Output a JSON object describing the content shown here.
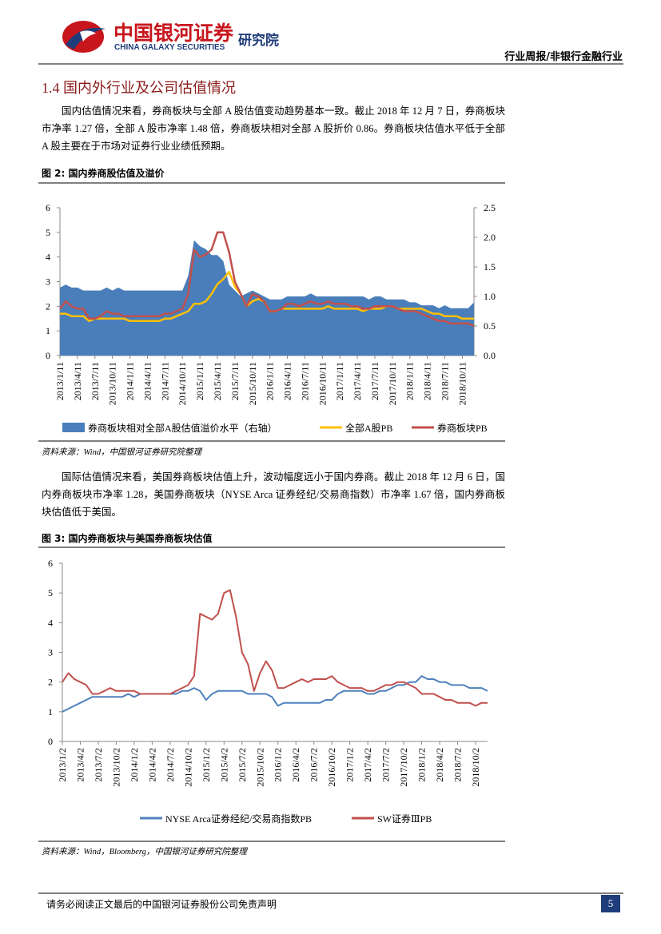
{
  "header": {
    "company_cn": "中国银河证券",
    "company_en": "CHINA GALAXY SECURITIES",
    "institute": "研究院",
    "report_type": "行业周报/非银行金融行业"
  },
  "section": {
    "heading": "1.4 国内外行业及公司估值情况",
    "paragraph_1": "国内估值情况来看，券商板块与全部 A 股估值变动趋势基本一致。截止 2018 年 12 月 7 日，券商板块市净率 1.27 倍，全部 A 股市净率 1.48 倍，券商板块相对全部 A 股折价 0.86。券商板块估值水平低于全部 A 股主要在于市场对证券行业业绩低预期。",
    "paragraph_2": "国际估值情况来看，美国券商板块估值上升，波动幅度远小于国内券商。截止 2018 年 12 月 6 日，国内券商板块市净率 1.28，美国券商板块（NYSE Arca 证券经纪/交易商指数）市净率 1.67 倍，国内券商板块估值低于美国。"
  },
  "chart_data": [
    {
      "type": "line",
      "title": "图 2: 国内券商股估值及溢价",
      "source": "资料来源：Wind，中国银河证券研究院整理",
      "categories": [
        "2013/1/11",
        null,
        null,
        "2013/4/11",
        null,
        null,
        "2013/7/11",
        null,
        null,
        "2013/10/11",
        null,
        null,
        "2014/1/11",
        null,
        null,
        "2014/4/11",
        null,
        null,
        "2014/7/11",
        null,
        null,
        "2014/10/11",
        null,
        null,
        "2015/1/11",
        null,
        null,
        "2015/4/11",
        null,
        null,
        "2015/7/11",
        null,
        null,
        "2015/10/11",
        null,
        null,
        "2016/1/11",
        null,
        null,
        "2016/4/11",
        null,
        null,
        "2016/7/11",
        null,
        null,
        "2016/10/11",
        null,
        null,
        "2017/1/11",
        null,
        null,
        "2017/4/11",
        null,
        null,
        "2017/7/11",
        null,
        null,
        "2017/10/11",
        null,
        null,
        "2018/1/11",
        null,
        null,
        "2018/4/11",
        null,
        null,
        "2018/7/11",
        null,
        null,
        "2018/10/11",
        null,
        null
      ],
      "ylim": [
        0,
        6
      ],
      "yticks": [
        0,
        1,
        2,
        3,
        4,
        5,
        6
      ],
      "y2lim": [
        0,
        2.5
      ],
      "y2ticks": [
        {
          "value": 0,
          "label": "0.0"
        },
        0.5,
        {
          "value": 1,
          "label": "1.0"
        },
        1.5,
        {
          "value": 2,
          "label": "2.0"
        },
        2.5
      ],
      "grid": false,
      "legend": "bottom",
      "series": [
        {
          "name": "券商板块相对全部A股估值溢价水平（右轴）",
          "kind": "area",
          "axis": "y2",
          "color": "#4a7ebb",
          "values": [
            1.15,
            1.2,
            1.15,
            1.15,
            1.1,
            1.1,
            1.1,
            1.1,
            1.15,
            1.1,
            1.15,
            1.1,
            1.1,
            1.1,
            1.1,
            1.1,
            1.1,
            1.1,
            1.1,
            1.1,
            1.1,
            1.1,
            1.35,
            1.95,
            1.85,
            1.8,
            1.7,
            1.7,
            1.6,
            1.2,
            1.1,
            1.0,
            1.05,
            1.1,
            1.05,
            1.0,
            0.95,
            0.95,
            0.95,
            1.0,
            1.0,
            1.0,
            1.0,
            1.05,
            1.0,
            1.0,
            1.0,
            1.0,
            1.0,
            1.0,
            1.0,
            1.0,
            1.0,
            0.95,
            1.0,
            1.0,
            0.95,
            0.95,
            0.95,
            0.95,
            0.9,
            0.9,
            0.85,
            0.85,
            0.85,
            0.8,
            0.85,
            0.8,
            0.8,
            0.8,
            0.8,
            0.9
          ]
        },
        {
          "name": "全部A股PB",
          "kind": "line",
          "color": "#ffc000",
          "values": [
            1.7,
            1.7,
            1.6,
            1.6,
            1.6,
            1.4,
            1.5,
            1.5,
            1.5,
            1.5,
            1.5,
            1.5,
            1.4,
            1.4,
            1.4,
            1.4,
            1.4,
            1.4,
            1.5,
            1.5,
            1.6,
            1.7,
            1.8,
            2.1,
            2.1,
            2.2,
            2.5,
            2.9,
            3.1,
            3.4,
            2.8,
            2.5,
            2.0,
            2.2,
            2.3,
            2.2,
            1.8,
            1.8,
            1.9,
            1.9,
            1.9,
            1.9,
            1.9,
            1.9,
            1.9,
            1.9,
            2.0,
            1.9,
            1.9,
            1.9,
            1.9,
            1.9,
            1.8,
            1.9,
            1.9,
            1.9,
            2.0,
            2.0,
            1.9,
            1.9,
            1.9,
            1.9,
            1.9,
            1.8,
            1.7,
            1.7,
            1.6,
            1.6,
            1.6,
            1.5,
            1.5,
            1.5
          ]
        },
        {
          "name": "券商板块PB",
          "kind": "line",
          "color": "#c0504d",
          "values": [
            1.9,
            2.2,
            2.0,
            1.9,
            1.9,
            1.5,
            1.5,
            1.6,
            1.8,
            1.7,
            1.7,
            1.6,
            1.6,
            1.6,
            1.6,
            1.6,
            1.6,
            1.6,
            1.7,
            1.7,
            1.8,
            1.9,
            2.5,
            4.3,
            4.0,
            4.1,
            4.3,
            5.0,
            5.0,
            4.2,
            3.0,
            2.5,
            2.0,
            2.5,
            2.4,
            2.2,
            1.8,
            1.8,
            1.9,
            2.1,
            2.1,
            2.0,
            2.1,
            2.2,
            2.1,
            2.1,
            2.2,
            2.1,
            2.1,
            2.1,
            2.0,
            2.0,
            1.9,
            1.9,
            2.0,
            2.0,
            2.0,
            2.0,
            1.9,
            1.8,
            1.8,
            1.8,
            1.7,
            1.6,
            1.5,
            1.4,
            1.4,
            1.3,
            1.3,
            1.3,
            1.3,
            1.2
          ]
        }
      ]
    },
    {
      "type": "line",
      "title": "图 3: 国内券商板块与美国券商板块估值",
      "source": "资料来源：Wind，Bloomberg，中国银河证券研究院整理",
      "categories": [
        "2013/1/2",
        null,
        null,
        "2013/4/2",
        null,
        null,
        "2013/7/2",
        null,
        null,
        "2013/10/2",
        null,
        null,
        "2014/1/2",
        null,
        null,
        "2014/4/2",
        null,
        null,
        "2014/7/2",
        null,
        null,
        "2014/10/2",
        null,
        null,
        "2015/1/2",
        null,
        null,
        "2015/4/2",
        null,
        null,
        "2015/7/2",
        null,
        null,
        "2015/10/2",
        null,
        null,
        "2016/1/2",
        null,
        null,
        "2016/4/2",
        null,
        null,
        "2016/7/2",
        null,
        null,
        "2016/10/2",
        null,
        null,
        "2017/1/2",
        null,
        null,
        "2017/4/2",
        null,
        null,
        "2017/7/2",
        null,
        null,
        "2017/10/2",
        null,
        null,
        "2018/1/2",
        null,
        null,
        "2018/4/2",
        null,
        null,
        "2018/7/2",
        null,
        null,
        "2018/10/2",
        null,
        null
      ],
      "ylim": [
        0,
        6
      ],
      "yticks": [
        0,
        1,
        2,
        3,
        4,
        5,
        6
      ],
      "grid": false,
      "legend": "bottom",
      "series": [
        {
          "name": "NYSE Arca证券经纪/交易商指数PB",
          "kind": "line",
          "color": "#4f81bd",
          "values": [
            1.0,
            1.1,
            1.2,
            1.3,
            1.4,
            1.5,
            1.5,
            1.5,
            1.5,
            1.5,
            1.5,
            1.6,
            1.5,
            1.6,
            1.6,
            1.6,
            1.6,
            1.6,
            1.6,
            1.6,
            1.7,
            1.7,
            1.8,
            1.7,
            1.4,
            1.6,
            1.7,
            1.7,
            1.7,
            1.7,
            1.7,
            1.6,
            1.6,
            1.6,
            1.6,
            1.5,
            1.2,
            1.3,
            1.3,
            1.3,
            1.3,
            1.3,
            1.3,
            1.3,
            1.4,
            1.4,
            1.6,
            1.7,
            1.7,
            1.7,
            1.7,
            1.6,
            1.6,
            1.7,
            1.7,
            1.8,
            1.9,
            1.9,
            2.0,
            2.0,
            2.2,
            2.1,
            2.1,
            2.0,
            2.0,
            1.9,
            1.9,
            1.9,
            1.8,
            1.8,
            1.8,
            1.7
          ]
        },
        {
          "name": "SW证券ⅢPB",
          "kind": "line",
          "color": "#c0504d",
          "values": [
            2.0,
            2.3,
            2.1,
            2.0,
            1.9,
            1.6,
            1.6,
            1.7,
            1.8,
            1.7,
            1.7,
            1.7,
            1.7,
            1.6,
            1.6,
            1.6,
            1.6,
            1.6,
            1.6,
            1.7,
            1.8,
            1.9,
            2.2,
            4.3,
            4.2,
            4.1,
            4.3,
            5.0,
            5.1,
            4.2,
            3.0,
            2.6,
            1.7,
            2.3,
            2.7,
            2.4,
            1.8,
            1.8,
            1.9,
            2.0,
            2.1,
            2.0,
            2.1,
            2.1,
            2.1,
            2.2,
            2.0,
            1.9,
            1.8,
            1.8,
            1.8,
            1.7,
            1.7,
            1.8,
            1.9,
            1.9,
            2.0,
            2.0,
            1.9,
            1.8,
            1.6,
            1.6,
            1.6,
            1.5,
            1.4,
            1.4,
            1.3,
            1.3,
            1.3,
            1.2,
            1.3,
            1.3
          ]
        }
      ]
    }
  ],
  "footer": {
    "disclaimer": "请务必阅读正文最后的中国银河证券股份公司免责声明",
    "page": 5
  }
}
